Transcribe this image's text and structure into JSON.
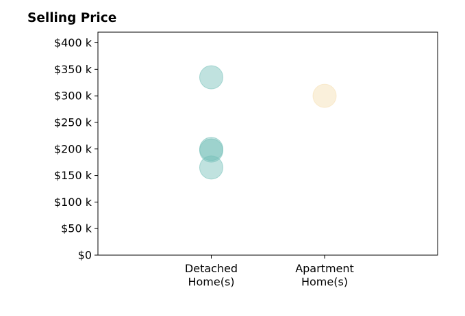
{
  "chart_data": {
    "type": "scatter",
    "title": "Selling Price",
    "xlabel": "",
    "ylabel": "",
    "categories": [
      [
        "Detached",
        "Home(s)"
      ],
      [
        "Apartment",
        "Home(s)"
      ]
    ],
    "y_ticks": [
      0,
      50000,
      100000,
      150000,
      200000,
      250000,
      300000,
      350000,
      400000
    ],
    "y_tick_labels": [
      "$0",
      "$50 k",
      "$100 k",
      "$150 k",
      "$200 k",
      "$250 k",
      "$300 k",
      "$350 k",
      "$400 k"
    ],
    "ylim": [
      0,
      420000
    ],
    "grid": false,
    "series": [
      {
        "category_index": 0,
        "color": "#73bfb8",
        "points": [
          335000,
          200000,
          197000,
          165000
        ]
      },
      {
        "category_index": 1,
        "color": "#f5deb0",
        "points": [
          300000
        ]
      }
    ]
  }
}
